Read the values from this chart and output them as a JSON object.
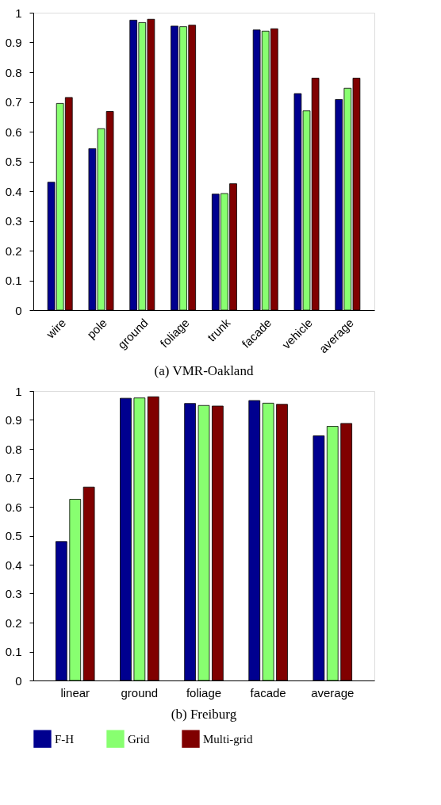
{
  "chart_data": [
    {
      "type": "bar",
      "title": "(a) VMR-Oakland",
      "categories": [
        "wire",
        "pole",
        "ground",
        "foliage",
        "trunk",
        "facade",
        "vehicle",
        "average"
      ],
      "series": [
        {
          "name": "F-H",
          "color": "#00008f",
          "values": [
            0.43,
            0.543,
            0.975,
            0.955,
            0.39,
            0.942,
            0.728,
            0.708
          ]
        },
        {
          "name": "Grid",
          "color": "#88ff70",
          "values": [
            0.695,
            0.61,
            0.967,
            0.953,
            0.392,
            0.938,
            0.67,
            0.746
          ]
        },
        {
          "name": "Multi-grid",
          "color": "#800000",
          "values": [
            0.715,
            0.668,
            0.978,
            0.958,
            0.425,
            0.946,
            0.78,
            0.78
          ]
        }
      ],
      "ylim": [
        0,
        1
      ],
      "yticks": [
        0,
        0.1,
        0.2,
        0.3,
        0.4,
        0.5,
        0.6,
        0.7,
        0.8,
        0.9,
        1
      ],
      "grid": false,
      "legend": "bottom"
    },
    {
      "type": "bar",
      "title": "(b) Freiburg",
      "categories": [
        "linear",
        "ground",
        "foliage",
        "facade",
        "average"
      ],
      "series": [
        {
          "name": "F-H",
          "color": "#00008f",
          "values": [
            0.48,
            0.975,
            0.957,
            0.967,
            0.845
          ]
        },
        {
          "name": "Grid",
          "color": "#88ff70",
          "values": [
            0.626,
            0.976,
            0.95,
            0.958,
            0.878
          ]
        },
        {
          "name": "Multi-grid",
          "color": "#800000",
          "values": [
            0.668,
            0.98,
            0.948,
            0.954,
            0.888
          ]
        }
      ],
      "ylim": [
        0,
        1
      ],
      "yticks": [
        0,
        0.1,
        0.2,
        0.3,
        0.4,
        0.5,
        0.6,
        0.7,
        0.8,
        0.9,
        1
      ],
      "grid": false,
      "legend": "bottom"
    }
  ]
}
